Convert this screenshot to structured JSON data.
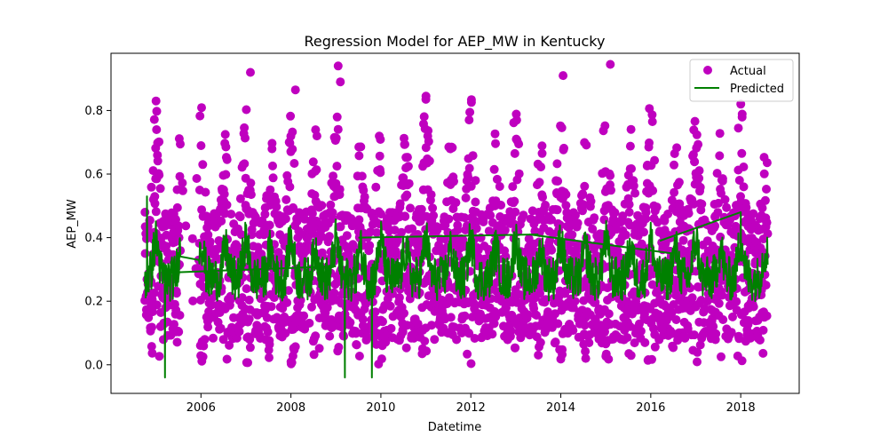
{
  "chart_data": {
    "type": "scatter",
    "title": "Regression Model for AEP_MW in Kentucky",
    "xlabel": "Datetime",
    "ylabel": "AEP_MW",
    "xlim": [
      2004.0,
      2019.3
    ],
    "ylim": [
      -0.09,
      0.98
    ],
    "x_ticks": [
      2006,
      2008,
      2010,
      2012,
      2014,
      2016,
      2018
    ],
    "x_tick_labels": [
      "2006",
      "2008",
      "2010",
      "2012",
      "2014",
      "2016",
      "2018"
    ],
    "y_ticks": [
      0.0,
      0.2,
      0.4,
      0.6,
      0.8
    ],
    "y_tick_labels": [
      "0.0",
      "0.2",
      "0.4",
      "0.6",
      "0.8"
    ],
    "grid": false,
    "legend_position": "top-right",
    "series": [
      {
        "name": "Actual",
        "kind": "scatter",
        "color": "#bf00bf",
        "x_range": [
          2004.75,
          2018.6
        ],
        "y_range": [
          0.0,
          0.94
        ],
        "summary": "dense seasonal oscillation, peaks around each new year (winter) and mid-year (summer)",
        "notable_points": [
          {
            "x": 2007.1,
            "y": 0.92
          },
          {
            "x": 2009.05,
            "y": 0.94
          },
          {
            "x": 2015.1,
            "y": 0.945
          },
          {
            "x": 2014.05,
            "y": 0.91
          },
          {
            "x": 2009.1,
            "y": 0.89
          },
          {
            "x": 2008.1,
            "y": 0.865
          },
          {
            "x": 2018.0,
            "y": 0.82
          },
          {
            "x": 2005.0,
            "y": 0.83
          },
          {
            "x": 2011.0,
            "y": 0.835
          }
        ]
      },
      {
        "name": "Predicted",
        "kind": "line",
        "color": "#008000",
        "x_range": [
          2004.75,
          2018.6
        ],
        "y_range": [
          -0.04,
          0.53
        ],
        "summary": "oscillates with the same seasonal pattern around 0.2-0.5; sharp dips near 2005.2, 2009.2 and 2009.8",
        "notable_points": [
          {
            "x": 2004.8,
            "y": 0.53
          },
          {
            "x": 2005.2,
            "y": -0.04
          },
          {
            "x": 2009.2,
            "y": -0.04
          },
          {
            "x": 2009.8,
            "y": -0.04
          },
          {
            "x": 2018.0,
            "y": 0.48
          }
        ]
      }
    ]
  },
  "colors": {
    "actual": "#bf00bf",
    "predicted": "#008000",
    "axes": "#000000",
    "background": "#ffffff"
  }
}
